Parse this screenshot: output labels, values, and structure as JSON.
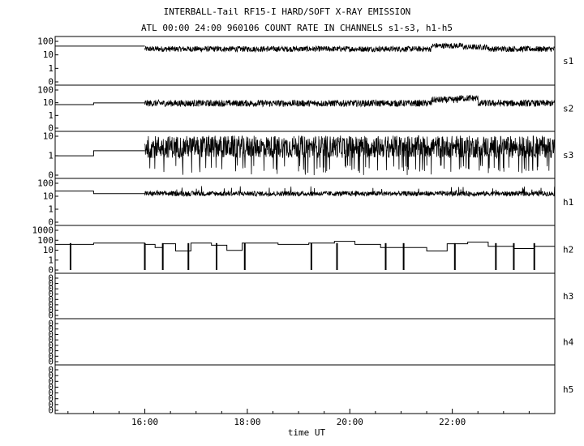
{
  "header": {
    "title": "INTERBALL-Tail RF15-I HARD/SOFT X-RAY EMISSION",
    "subtitle": "ATL 00:00 24:00 960106  COUNT RATE IN CHANNELS s1-s3, h1-h5"
  },
  "chart_data": {
    "type": "line",
    "xlabel": "time UT",
    "x_ticks": [
      "16:00",
      "18:00",
      "20:00",
      "22:00"
    ],
    "x_range_hours": [
      14.25,
      24.0
    ],
    "data_gap_hours": [
      14.25,
      16.0
    ],
    "grid": false,
    "y_scale": "log",
    "series": [
      {
        "name": "s1",
        "ticks": [
          "100",
          "10",
          "1",
          "0"
        ],
        "ylim": [
          0.1,
          100
        ],
        "pre_gap": [
          [
            14.25,
            35
          ],
          [
            16.0,
            35
          ]
        ],
        "baseline": 22,
        "noise": 0.2,
        "bumps": [
          [
            21.6,
            22.2,
            1.7
          ],
          [
            22.2,
            22.7,
            1.35
          ]
        ]
      },
      {
        "name": "s2",
        "ticks": [
          "100",
          "10",
          "1",
          "0"
        ],
        "ylim": [
          0.1,
          100
        ],
        "pre_gap": [
          [
            14.25,
            6
          ],
          [
            15.0,
            6
          ],
          [
            15.0,
            8
          ],
          [
            16.0,
            8
          ]
        ],
        "baseline": 7.5,
        "noise": 0.25,
        "bumps": [
          [
            21.6,
            22.1,
            1.8
          ],
          [
            22.1,
            22.5,
            2.4
          ]
        ]
      },
      {
        "name": "s3",
        "ticks": [
          "10",
          "1",
          "0"
        ],
        "ylim": [
          0.1,
          10
        ],
        "pre_gap": [
          [
            14.25,
            0.9
          ],
          [
            15.0,
            0.9
          ],
          [
            15.0,
            1.6
          ],
          [
            16.0,
            1.6
          ]
        ],
        "baseline": 2.5,
        "noise": 0.55,
        "dropouts": true,
        "bumps": []
      },
      {
        "name": "h1",
        "ticks": [
          "100",
          "10",
          "1",
          "0"
        ],
        "ylim": [
          0.1,
          100
        ],
        "pre_gap": [
          [
            14.25,
            20
          ],
          [
            15.0,
            20
          ],
          [
            15.0,
            13
          ],
          [
            16.0,
            13
          ]
        ],
        "baseline": 13,
        "noise": 0.18,
        "spikes": true,
        "bumps": []
      },
      {
        "name": "h2",
        "ticks": [
          "1000",
          "100",
          "10",
          "1",
          "0"
        ],
        "ylim": [
          0.1,
          1000
        ],
        "step_levels": [
          [
            14.25,
            15.0,
            30
          ],
          [
            15.0,
            16.0,
            40
          ],
          [
            16.0,
            16.2,
            30
          ],
          [
            16.2,
            16.35,
            15
          ],
          [
            16.35,
            16.6,
            35
          ],
          [
            16.6,
            16.9,
            7
          ],
          [
            16.9,
            17.3,
            40
          ],
          [
            17.3,
            17.6,
            25
          ],
          [
            17.6,
            17.9,
            8
          ],
          [
            17.9,
            18.6,
            40
          ],
          [
            18.6,
            19.2,
            30
          ],
          [
            19.2,
            19.7,
            40
          ],
          [
            19.7,
            20.1,
            60
          ],
          [
            20.1,
            20.6,
            30
          ],
          [
            20.6,
            21.0,
            15
          ],
          [
            21.0,
            21.5,
            15
          ],
          [
            21.5,
            21.9,
            7
          ],
          [
            21.9,
            22.3,
            35
          ],
          [
            22.3,
            22.7,
            50
          ],
          [
            22.7,
            23.2,
            20
          ],
          [
            23.2,
            23.6,
            12
          ],
          [
            23.6,
            24.0,
            20
          ]
        ],
        "spike_times": [
          14.55,
          16.0,
          16.35,
          16.85,
          17.4,
          17.95,
          19.25,
          19.75,
          20.7,
          21.05,
          22.05,
          22.85,
          23.2,
          23.6
        ]
      },
      {
        "name": "h3",
        "ticks": [
          "0",
          "0",
          "0",
          "0",
          "0",
          "0",
          "0",
          "0"
        ],
        "ylim": [
          0,
          1
        ],
        "empty": true
      },
      {
        "name": "h4",
        "ticks": [
          "0",
          "0",
          "0",
          "0",
          "0",
          "0",
          "0",
          "0"
        ],
        "ylim": [
          0,
          1
        ],
        "empty": true
      },
      {
        "name": "h5",
        "ticks": [
          "0",
          "0",
          "0",
          "0",
          "0",
          "0",
          "0",
          "0"
        ],
        "ylim": [
          0,
          1
        ],
        "empty": true
      }
    ]
  }
}
